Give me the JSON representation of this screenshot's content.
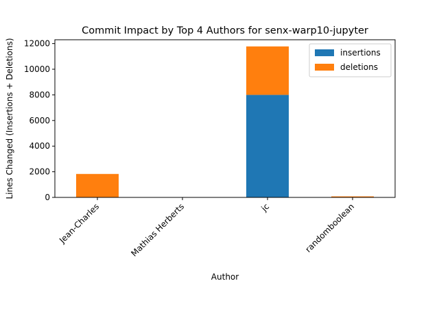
{
  "chart_data": {
    "type": "bar",
    "stacked": true,
    "title": "Commit Impact by Top 4 Authors for senx-warp10-jupyter",
    "xlabel": "Author",
    "ylabel": "Lines Changed (Insertions + Deletions)",
    "categories": [
      "Jean-Charles",
      "Mathias Herberts",
      "jc",
      "randomboolean"
    ],
    "series": [
      {
        "name": "insertions",
        "color": "#1f77b4",
        "values": [
          10,
          0,
          8000,
          20
        ]
      },
      {
        "name": "deletions",
        "color": "#ff7f0e",
        "values": [
          1820,
          0,
          3780,
          60
        ]
      }
    ],
    "ylim": [
      0,
      12300
    ],
    "yticks": [
      0,
      2000,
      4000,
      6000,
      8000,
      10000,
      12000
    ],
    "legend_position": "top-right",
    "grid": false
  }
}
